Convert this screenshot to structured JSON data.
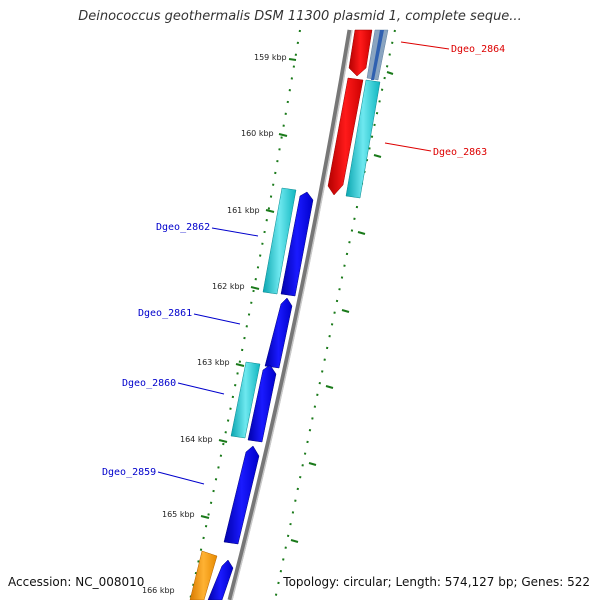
{
  "title": "Deinococcus geothermalis DSM 11300 plasmid 1, complete seque...",
  "accession": "Accession: NC_008010",
  "summary": "Topology: circular; Length: 574,127 bp; Genes: 522",
  "ruler": {
    "ticks": [
      "159 kbp",
      "160 kbp",
      "161 kbp",
      "162 kbp",
      "163 kbp",
      "164 kbp",
      "165 kbp",
      "166 kbp"
    ]
  },
  "genes": {
    "forward": [
      {
        "label": "Dgeo_2864",
        "color": "#dd0000"
      },
      {
        "label": "Dgeo_2863",
        "color": "#dd0000"
      }
    ],
    "reverse": [
      {
        "label": "Dgeo_2862",
        "color": "#0000cc"
      },
      {
        "label": "Dgeo_2861",
        "color": "#0000cc"
      },
      {
        "label": "Dgeo_2860",
        "color": "#0000cc"
      },
      {
        "label": "Dgeo_2859",
        "color": "#0000cc"
      }
    ]
  },
  "colors": {
    "forward_gene": "#ff0000",
    "forward_cds": "#20c8d0",
    "reverse_gene": "#0000ee",
    "reverse_cds": "#20c8d0",
    "backbone": "#888888",
    "tick": "#1a7a1a",
    "other_feature": "#ff9900",
    "grey_feature": "#a8b8c8"
  }
}
